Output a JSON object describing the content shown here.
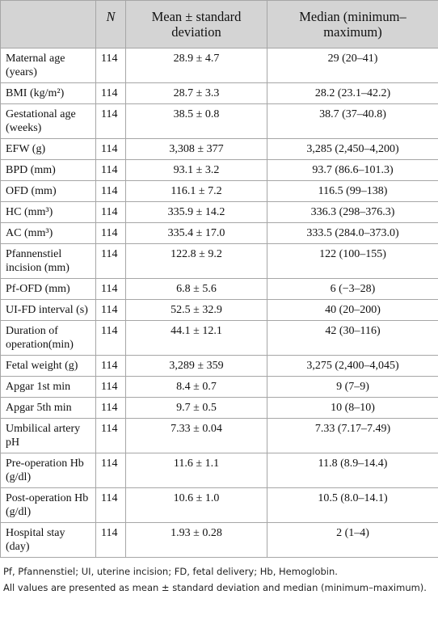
{
  "table": {
    "header": [
      "",
      "N",
      "Mean ± standard deviation",
      "Median (minimum–maximum)"
    ],
    "rows": [
      [
        "Maternal age (years)",
        "114",
        "28.9 ± 4.7",
        "29 (20–41)"
      ],
      [
        "BMI (kg/m²)",
        "114",
        "28.7 ± 3.3",
        "28.2 (23.1–42.2)"
      ],
      [
        "Gestational age (weeks)",
        "114",
        "38.5 ± 0.8",
        "38.7 (37–40.8)"
      ],
      [
        "EFW (g)",
        "114",
        "3,308 ± 377",
        "3,285 (2,450–4,200)"
      ],
      [
        "BPD (mm)",
        "114",
        "93.1 ± 3.2",
        "93.7 (86.6–101.3)"
      ],
      [
        "OFD (mm)",
        "114",
        "116.1 ± 7.2",
        "116.5 (99–138)"
      ],
      [
        "HC (mm³)",
        "114",
        "335.9 ± 14.2",
        "336.3 (298–376.3)"
      ],
      [
        "AC (mm³)",
        "114",
        "335.4 ± 17.0",
        "333.5 (284.0–373.0)"
      ],
      [
        "Pfannenstiel incision (mm)",
        "114",
        "122.8 ± 9.2",
        "122 (100–155)"
      ],
      [
        "Pf-OFD (mm)",
        "114",
        "6.8 ± 5.6",
        "6 (−3–28)"
      ],
      [
        "UI-FD interval (s)",
        "114",
        "52.5 ± 32.9",
        "40 (20–200)"
      ],
      [
        "Duration of operation(min)",
        "114",
        "44.1 ± 12.1",
        "42 (30–116)"
      ],
      [
        "Fetal weight (g)",
        "114",
        "3,289 ± 359",
        "3,275 (2,400–4,045)"
      ],
      [
        "Apgar 1st min",
        "114",
        "8.4 ± 0.7",
        "9 (7–9)"
      ],
      [
        "Apgar 5th min",
        "114",
        "9.7 ± 0.5",
        "10 (8–10)"
      ],
      [
        "Umbilical artery pH",
        "114",
        "7.33 ± 0.04",
        "7.33 (7.17–7.49)"
      ],
      [
        "Pre-operation Hb (g/dl)",
        "114",
        "11.6 ± 1.1",
        "11.8 (8.9–14.4)"
      ],
      [
        "Post-operation Hb (g/dl)",
        "114",
        "10.6 ± 1.0",
        "10.5 (8.0–14.1)"
      ],
      [
        "Hospital stay (day)",
        "114",
        "1.93 ± 0.28",
        "2 (1–4)"
      ]
    ]
  },
  "footnotes": [
    "Pf, Pfannenstiel; UI, uterine incision; FD, fetal delivery; Hb, Hemoglobin.",
    "All values are presented as mean ± standard deviation and median (minimum–maximum)."
  ]
}
